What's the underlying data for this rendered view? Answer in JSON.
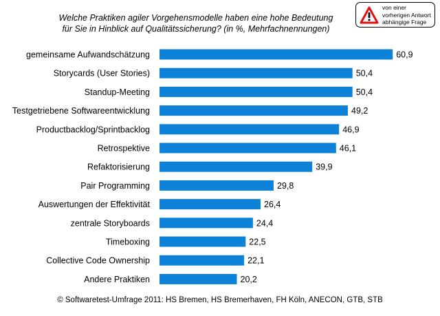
{
  "title_lines": [
    "Welche Praktiken agiler Vorgehensmodelle haben eine hohe Bedeutung",
    "für Sie in Hinblick auf Qualitätssicherung? (in %, Mehrfachnennungen)"
  ],
  "notice": {
    "lines": [
      "von einer",
      "vorherigen Antwort",
      "abhängige Frage"
    ],
    "icon": "warning-triangle-icon"
  },
  "footer": "© Softwaretest-Umfrage 2011: HS Bremen, HS Bremerhaven, FH Köln, ANECON, GTB, STB",
  "colors": {
    "bar": "#0d82d8",
    "warning": "#e01010"
  },
  "chart_data": {
    "type": "bar",
    "orientation": "horizontal",
    "categories": [
      "gemeinsame Aufwandschätzung",
      "Storycards (User Stories)",
      "Standup-Meeting",
      "Testgetriebene Softwareentwicklung",
      "Productbacklog/Sprintbacklog",
      "Retrospektive",
      "Refaktorisierung",
      "Pair Programming",
      "Auswertungen der Effektivität",
      "zentrale Storyboards",
      "Timeboxing",
      "Collective Code Ownership",
      "Andere Praktiken"
    ],
    "values": [
      60.9,
      50.4,
      50.4,
      49.2,
      46.9,
      46.1,
      39.9,
      29.8,
      26.4,
      24.4,
      22.5,
      22.1,
      20.2
    ],
    "value_labels": [
      "60,9",
      "50,4",
      "50,4",
      "49,2",
      "46,9",
      "46,1",
      "39,9",
      "29,8",
      "26,4",
      "24,4",
      "22,5",
      "22,1",
      "20,2"
    ],
    "xlim": [
      0,
      61
    ],
    "grid": false,
    "legend": "none"
  }
}
